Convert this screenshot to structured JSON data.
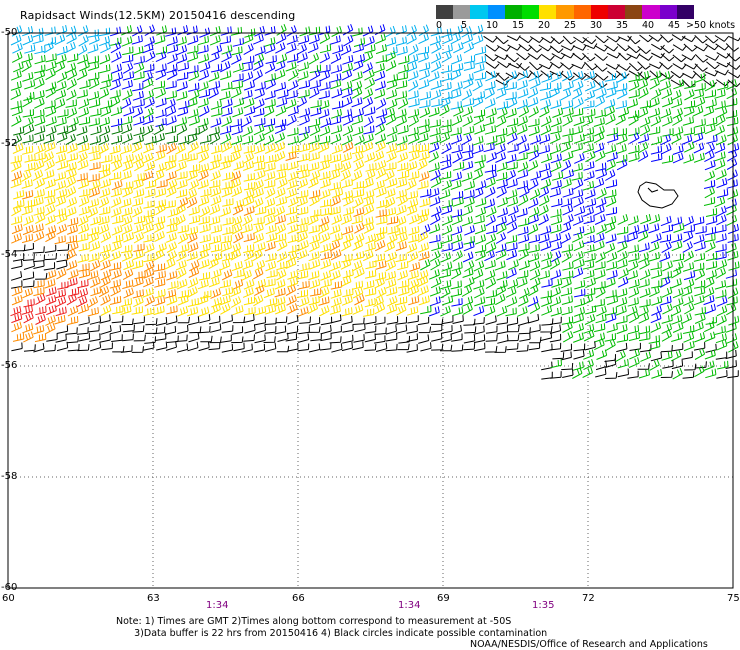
{
  "title": "Rapidsact Winds(12.5KM) 20150416 descending",
  "legend": {
    "unit_label": ">50 knots",
    "labels": [
      "0",
      "5",
      "10",
      "15",
      "20",
      "25",
      "30",
      "35",
      "40",
      "45",
      ">50"
    ],
    "colors": [
      "#404040",
      "#9a9a9a",
      "#00c8f0",
      "#0090ff",
      "#00b000",
      "#00dd00",
      "#ffe000",
      "#ff9900",
      "#ff6600",
      "#ee0000",
      "#cc0033",
      "#8b4513",
      "#cc00cc",
      "#7a00cc",
      "#330066"
    ]
  },
  "map": {
    "lon_min": 60,
    "lon_max": 75,
    "lat_min": -60,
    "lat_max": -50,
    "lon_ticks": [
      "60",
      "63",
      "66",
      "69",
      "72",
      "75"
    ],
    "lat_ticks": [
      "-50",
      "-52",
      "-54",
      "-56",
      "-58",
      "-60"
    ],
    "barb_colors": {
      "black": "#000000",
      "light_blue": "#00b0f0",
      "blue": "#0000ff",
      "green": "#00bb00",
      "dark_green": "#007700",
      "yellow": "#ffe000",
      "orange": "#ff8c00",
      "red": "#ee2020"
    }
  },
  "times": [
    "1:34",
    "1:34",
    "1:35"
  ],
  "notes": {
    "line1": "Note: 1) Times are GMT 2)Times along bottom correspond to measurement at -50S",
    "line2": "3)Data buffer is 22 hrs from 20150416 4) Black circles indicate possible contamination"
  },
  "credit": "NOAA/NESDIS/Office of Research and Applications"
}
